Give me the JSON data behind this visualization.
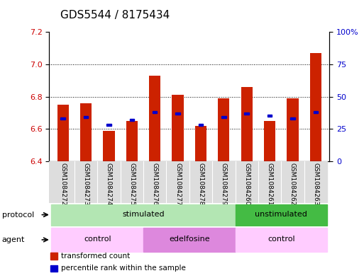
{
  "title": "GDS5544 / 8175434",
  "samples": [
    "GSM1084272",
    "GSM1084273",
    "GSM1084274",
    "GSM1084275",
    "GSM1084276",
    "GSM1084277",
    "GSM1084278",
    "GSM1084279",
    "GSM1084260",
    "GSM1084261",
    "GSM1084262",
    "GSM1084263"
  ],
  "bar_values": [
    6.75,
    6.76,
    6.59,
    6.65,
    6.93,
    6.81,
    6.62,
    6.79,
    6.86,
    6.65,
    6.79,
    7.07
  ],
  "bar_base": 6.4,
  "percentile_values": [
    33,
    34,
    28,
    32,
    38,
    37,
    28,
    34,
    37,
    35,
    33,
    38
  ],
  "ylim": [
    6.4,
    7.2
  ],
  "yticks_left": [
    6.4,
    6.6,
    6.8,
    7.0,
    7.2
  ],
  "yticks_right": [
    0,
    25,
    50,
    75,
    100
  ],
  "bar_color": "#cc2200",
  "percentile_color": "#0000cc",
  "protocol_groups": [
    {
      "label": "stimulated",
      "start": 0,
      "end": 7,
      "color": "#b3e6b3"
    },
    {
      "label": "unstimulated",
      "start": 8,
      "end": 11,
      "color": "#44bb44"
    }
  ],
  "agent_groups": [
    {
      "label": "control",
      "start": 0,
      "end": 3,
      "color": "#ffccff"
    },
    {
      "label": "edelfosine",
      "start": 4,
      "end": 7,
      "color": "#dd88dd"
    },
    {
      "label": "control",
      "start": 8,
      "end": 11,
      "color": "#ffccff"
    }
  ],
  "legend_items": [
    {
      "label": "transformed count",
      "color": "#cc2200"
    },
    {
      "label": "percentile rank within the sample",
      "color": "#0000cc"
    }
  ],
  "xlabel_protocol": "protocol",
  "xlabel_agent": "agent",
  "title_fontsize": 11,
  "tick_fontsize": 8
}
